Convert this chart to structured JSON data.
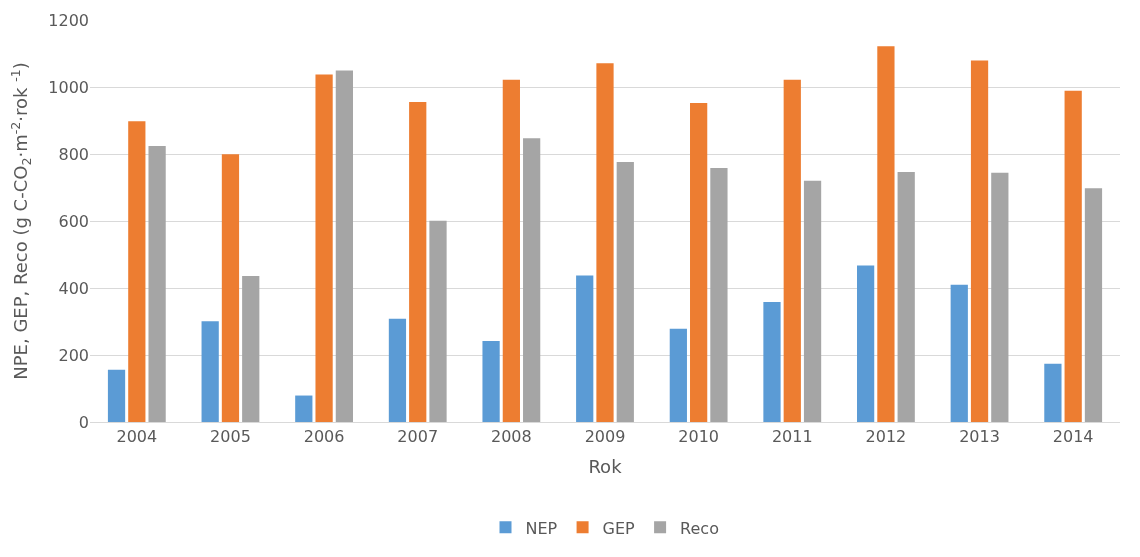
{
  "chart_data": {
    "type": "bar",
    "xlabel": "Rok",
    "ylabel": "NPE, GEP, Reco (g C-CO$_{2}$·m$^{-2}$·rok $^{-1}$)",
    "categories": [
      "2004",
      "2005",
      "2006",
      "2007",
      "2008",
      "2009",
      "2010",
      "2011",
      "2012",
      "2013",
      "2014"
    ],
    "series": [
      {
        "name": "NEP",
        "color": "#5b9bd5",
        "values": [
          156,
          301,
          79,
          308,
          242,
          437,
          278,
          358,
          467,
          410,
          174
        ]
      },
      {
        "name": "GEP",
        "color": "#ed7d31",
        "values": [
          898,
          799,
          1037,
          955,
          1022,
          1071,
          952,
          1022,
          1122,
          1079,
          989
        ]
      },
      {
        "name": "Reco",
        "color": "#a5a5a5",
        "values": [
          824,
          436,
          1049,
          601,
          847,
          776,
          758,
          720,
          746,
          744,
          698
        ]
      }
    ],
    "ylim": [
      0,
      1200
    ],
    "yticks": [
      0,
      200,
      400,
      600,
      800,
      1000,
      1200
    ],
    "grid": "y",
    "legend": "bottom"
  }
}
